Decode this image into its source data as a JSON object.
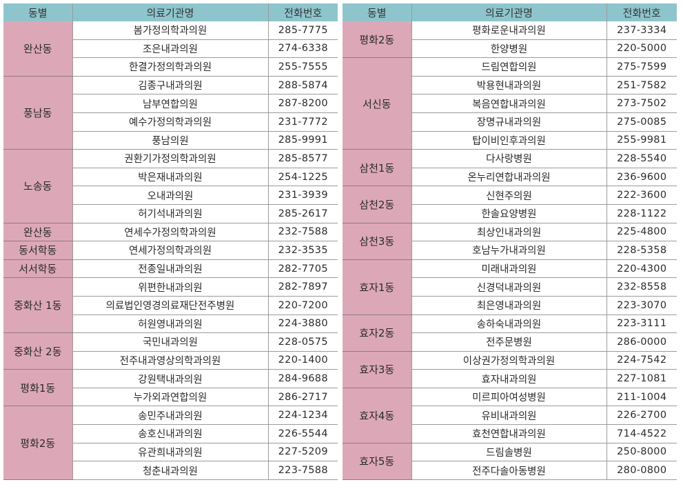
{
  "headers": [
    "동별",
    "의료기관명",
    "전화번호"
  ],
  "left": [
    {
      "dong": "완산동",
      "rows": [
        {
          "name": "봄가정의학과의원",
          "phone": "285-7775"
        },
        {
          "name": "조은내과의원",
          "phone": "274-6338"
        },
        {
          "name": "한결가정의학과의원",
          "phone": "255-7555"
        }
      ]
    },
    {
      "dong": "풍남동",
      "rows": [
        {
          "name": "김종구내과의원",
          "phone": "288-5874"
        },
        {
          "name": "남부연합의원",
          "phone": "287-8200"
        },
        {
          "name": "예수가정의학과의원",
          "phone": "231-7772"
        },
        {
          "name": "풍남의원",
          "phone": "285-9991"
        }
      ]
    },
    {
      "dong": "노송동",
      "rows": [
        {
          "name": "권환기가정의학과의원",
          "phone": "285-8577"
        },
        {
          "name": "박은재내과의원",
          "phone": "254-1225"
        },
        {
          "name": "오내과의원",
          "phone": "231-3939"
        },
        {
          "name": "허기석내과의원",
          "phone": "285-2617"
        }
      ]
    },
    {
      "dong": "완산동",
      "rows": [
        {
          "name": "연세수가정의학과의원",
          "phone": "232-7588"
        }
      ]
    },
    {
      "dong": "동서학동",
      "rows": [
        {
          "name": "연세가정의학과의원",
          "phone": "232-3535"
        }
      ]
    },
    {
      "dong": "서서학동",
      "rows": [
        {
          "name": "전종일내과의원",
          "phone": "282-7705"
        }
      ]
    },
    {
      "dong": "중화산 1동",
      "rows": [
        {
          "name": "위편한내과의원",
          "phone": "282-7897"
        },
        {
          "name": "의료법인영경의료재단전주병원",
          "phone": "220-7200"
        },
        {
          "name": "허원영내과의원",
          "phone": "224-3880"
        }
      ]
    },
    {
      "dong": "중화산 2동",
      "rows": [
        {
          "name": "국민내과의원",
          "phone": "228-0575"
        },
        {
          "name": "전주내과영상의학과의원",
          "phone": "220-1400"
        }
      ]
    },
    {
      "dong": "평화1동",
      "rows": [
        {
          "name": "강원택내과의원",
          "phone": "284-9688"
        },
        {
          "name": "누가외과연합의원",
          "phone": "286-2717"
        }
      ]
    },
    {
      "dong": "평화2동",
      "rows": [
        {
          "name": "송민주내과의원",
          "phone": "224-1234"
        },
        {
          "name": "송호신내과의원",
          "phone": "226-5544"
        },
        {
          "name": "유관희내과의원",
          "phone": "227-5209"
        },
        {
          "name": "청춘내과의원",
          "phone": "223-7588"
        }
      ]
    }
  ],
  "right": [
    {
      "dong": "평화2동",
      "rows": [
        {
          "name": "평화로운내과의원",
          "phone": "237-3334"
        },
        {
          "name": "한양병원",
          "phone": "220-5000"
        }
      ]
    },
    {
      "dong": "서신동",
      "rows": [
        {
          "name": "드림연합의원",
          "phone": "275-7599"
        },
        {
          "name": "박용현내과의원",
          "phone": "251-7582"
        },
        {
          "name": "복음연합내과의원",
          "phone": "273-7502"
        },
        {
          "name": "장명규내과의원",
          "phone": "275-0085"
        },
        {
          "name": "탑이비인후과의원",
          "phone": "255-9981"
        }
      ]
    },
    {
      "dong": "삼천1동",
      "rows": [
        {
          "name": "다사랑병원",
          "phone": "228-5540"
        },
        {
          "name": "온누리연합내과의원",
          "phone": "236-9600"
        }
      ]
    },
    {
      "dong": "삼천2동",
      "rows": [
        {
          "name": "신현주의원",
          "phone": "222-3600"
        },
        {
          "name": "한솔요양병원",
          "phone": "228-1122"
        }
      ]
    },
    {
      "dong": "삼천3동",
      "rows": [
        {
          "name": "최상인내과의원",
          "phone": "225-4800"
        },
        {
          "name": "호남누가내과의원",
          "phone": "228-5358"
        }
      ]
    },
    {
      "dong": "효자1동",
      "rows": [
        {
          "name": "미래내과의원",
          "phone": "220-4300"
        },
        {
          "name": "신경덕내과의원",
          "phone": "232-8558"
        },
        {
          "name": "최은영내과의원",
          "phone": "223-3070"
        }
      ]
    },
    {
      "dong": "효자2동",
      "rows": [
        {
          "name": "송하숙내과의원",
          "phone": "223-3111"
        },
        {
          "name": "전주문병원",
          "phone": "286-0000"
        }
      ]
    },
    {
      "dong": "효자3동",
      "rows": [
        {
          "name": "이상권가정의학과의원",
          "phone": "224-7542"
        },
        {
          "name": "효자내과의원",
          "phone": "227-1081"
        }
      ]
    },
    {
      "dong": "효자4동",
      "rows": [
        {
          "name": "미르피아여성병원",
          "phone": "211-1004"
        },
        {
          "name": "유비내과의원",
          "phone": "226-2700"
        },
        {
          "name": "효천연합내과의원",
          "phone": "714-4522"
        }
      ]
    },
    {
      "dong": "효자5동",
      "rows": [
        {
          "name": "드림솔병원",
          "phone": "250-8000"
        },
        {
          "name": "전주다솔아동병원",
          "phone": "280-0800"
        }
      ]
    }
  ],
  "colors": {
    "header": "#8ec5cd",
    "district": "#dca8b8"
  }
}
